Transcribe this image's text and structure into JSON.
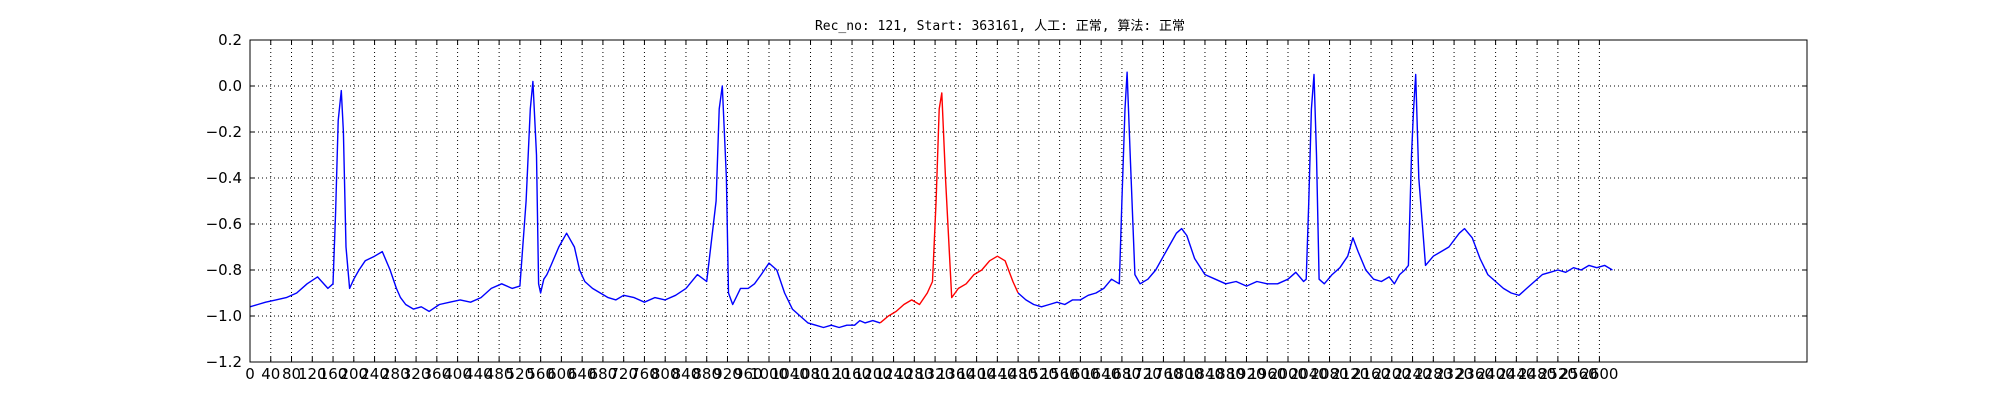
{
  "chart_data": {
    "type": "line",
    "title": "Rec_no: 121, Start: 363161, 人工: 正常, 算法: 正常",
    "xlabel": "",
    "ylabel": "",
    "xlim": [
      0,
      3000
    ],
    "ylim": [
      -1.2,
      0.2
    ],
    "grid": true,
    "x_ticks": [
      0,
      40,
      80,
      120,
      160,
      200,
      240,
      280,
      320,
      360,
      400,
      440,
      480,
      520,
      560,
      600,
      640,
      680,
      720,
      760,
      800,
      840,
      880,
      920,
      960,
      1000,
      1040,
      1080,
      1120,
      1160,
      1200,
      1240,
      1280,
      1320,
      1360,
      1400,
      1440,
      1480,
      1520,
      1560,
      1600,
      1640,
      1680,
      1720,
      1760,
      1800,
      1840,
      1880,
      1920,
      1960,
      2000,
      2040,
      2080,
      2120,
      2160,
      2200,
      2240,
      2280,
      2320,
      2360,
      2400,
      2440,
      2480,
      2520,
      2560,
      2600
    ],
    "y_ticks": [
      "0.2",
      "0.0",
      "−0.2",
      "−0.4",
      "−0.6",
      "−0.8",
      "−1.0",
      "−1.2"
    ],
    "series": [
      {
        "color": "#0000ff",
        "x": [
          0,
          15,
          30,
          50,
          70,
          90,
          110,
          130,
          150,
          160,
          165,
          170,
          176,
          180,
          185,
          192,
          200,
          210,
          222,
          240,
          255,
          270,
          282,
          290,
          300,
          315,
          330,
          345,
          365,
          385,
          405,
          425,
          445,
          465,
          485,
          505,
          520,
          532,
          540,
          545,
          552,
          556,
          560,
          566,
          572,
          580,
          595,
          610,
          625,
          635,
          645,
          660,
          675,
          690,
          705,
          720,
          740,
          760,
          780,
          800,
          820,
          840,
          862,
          880,
          898,
          904,
          910,
          918,
          922,
          930,
          945,
          960,
          972,
          985,
          1000,
          1015,
          1030,
          1045,
          1060,
          1075,
          1090,
          1105,
          1120,
          1135,
          1150,
          1165,
          1175,
          1185,
          1200,
          1214
        ],
        "y": [
          -0.96,
          -0.95,
          -0.94,
          -0.93,
          -0.92,
          -0.9,
          -0.86,
          -0.83,
          -0.88,
          -0.86,
          -0.55,
          -0.15,
          -0.02,
          -0.2,
          -0.7,
          -0.88,
          -0.84,
          -0.8,
          -0.76,
          -0.74,
          -0.72,
          -0.8,
          -0.88,
          -0.92,
          -0.95,
          -0.97,
          -0.96,
          -0.98,
          -0.95,
          -0.94,
          -0.93,
          -0.94,
          -0.92,
          -0.88,
          -0.86,
          -0.88,
          -0.87,
          -0.5,
          -0.1,
          0.02,
          -0.3,
          -0.86,
          -0.9,
          -0.84,
          -0.82,
          -0.78,
          -0.7,
          -0.64,
          -0.7,
          -0.8,
          -0.85,
          -0.88,
          -0.9,
          -0.92,
          -0.93,
          -0.91,
          -0.92,
          -0.94,
          -0.92,
          -0.93,
          -0.91,
          -0.88,
          -0.82,
          -0.85,
          -0.5,
          -0.1,
          0.0,
          -0.4,
          -0.9,
          -0.95,
          -0.88,
          -0.88,
          -0.86,
          -0.82,
          -0.77,
          -0.8,
          -0.9,
          -0.97,
          -1.0,
          -1.03,
          -1.04,
          -1.05,
          -1.04,
          -1.05,
          -1.04,
          -1.04,
          -1.02,
          -1.03,
          -1.02,
          -1.03
        ]
      },
      {
        "color": "#ff0000",
        "x": [
          1214,
          1230,
          1245,
          1260,
          1275,
          1290,
          1305,
          1315,
          1322,
          1328,
          1333,
          1340,
          1352,
          1365,
          1380,
          1395,
          1410,
          1425,
          1440,
          1455,
          1470,
          1480
        ],
        "y": [
          -1.03,
          -1.0,
          -0.98,
          -0.95,
          -0.93,
          -0.95,
          -0.9,
          -0.85,
          -0.5,
          -0.1,
          -0.03,
          -0.4,
          -0.92,
          -0.88,
          -0.86,
          -0.82,
          -0.8,
          -0.76,
          -0.74,
          -0.76,
          -0.85,
          -0.9
        ]
      },
      {
        "color": "#0000ff",
        "x": [
          1480,
          1495,
          1510,
          1525,
          1540,
          1555,
          1570,
          1585,
          1600,
          1615,
          1630,
          1645,
          1660,
          1675,
          1680,
          1686,
          1690,
          1696,
          1705,
          1715,
          1730,
          1745,
          1760,
          1775,
          1785,
          1795,
          1805,
          1820,
          1840,
          1860,
          1880,
          1900,
          1920,
          1940,
          1960,
          1980,
          2000,
          2015,
          2030,
          2035,
          2040,
          2045,
          2050,
          2055,
          2060,
          2070,
          2085,
          2100,
          2115,
          2125,
          2135,
          2150,
          2165,
          2180,
          2195,
          2205,
          2215,
          2225,
          2232,
          2238,
          2242,
          2246,
          2252,
          2265,
          2280,
          2295,
          2310,
          2320,
          2330,
          2340,
          2355,
          2370,
          2385,
          2400,
          2415,
          2430,
          2445,
          2460,
          2475,
          2490,
          2505,
          2520,
          2535,
          2550,
          2565,
          2580,
          2595,
          2610,
          2625
        ],
        "y": [
          -0.9,
          -0.93,
          -0.95,
          -0.96,
          -0.95,
          -0.94,
          -0.95,
          -0.93,
          -0.93,
          -0.91,
          -0.9,
          -0.88,
          -0.84,
          -0.86,
          -0.5,
          -0.1,
          0.06,
          -0.3,
          -0.82,
          -0.86,
          -0.84,
          -0.8,
          -0.74,
          -0.68,
          -0.64,
          -0.62,
          -0.65,
          -0.75,
          -0.82,
          -0.84,
          -0.86,
          -0.85,
          -0.87,
          -0.85,
          -0.86,
          -0.86,
          -0.84,
          -0.81,
          -0.85,
          -0.84,
          -0.5,
          -0.1,
          0.05,
          -0.3,
          -0.84,
          -0.86,
          -0.82,
          -0.79,
          -0.74,
          -0.66,
          -0.72,
          -0.8,
          -0.84,
          -0.85,
          -0.83,
          -0.86,
          -0.82,
          -0.8,
          -0.78,
          -0.3,
          -0.1,
          0.05,
          -0.4,
          -0.78,
          -0.74,
          -0.72,
          -0.7,
          -0.67,
          -0.64,
          -0.62,
          -0.66,
          -0.75,
          -0.82,
          -0.85,
          -0.88,
          -0.9,
          -0.91,
          -0.88,
          -0.85,
          -0.82,
          -0.81,
          -0.8,
          -0.81,
          -0.79,
          -0.8,
          -0.78,
          -0.79,
          -0.78,
          -0.8
        ]
      }
    ]
  }
}
